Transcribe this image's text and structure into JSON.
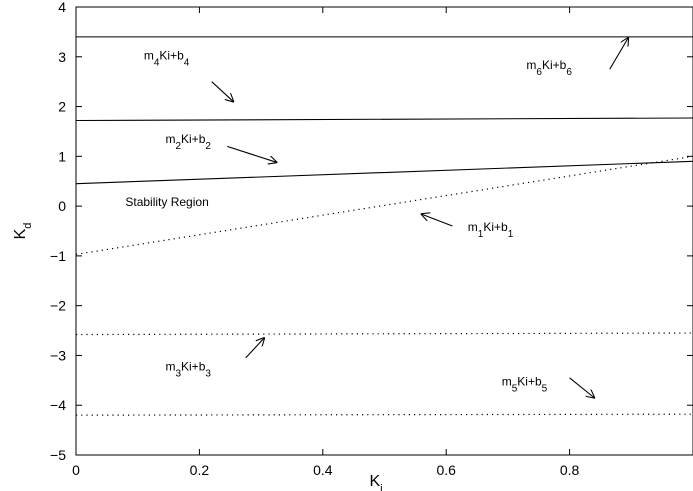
{
  "chart_data": {
    "type": "line",
    "title": "",
    "xlabel": {
      "main": "K",
      "sub": "i"
    },
    "ylabel": {
      "main": "K",
      "sub": "d"
    },
    "xlim": [
      0,
      1
    ],
    "ylim": [
      -5,
      4
    ],
    "xticks": [
      0,
      0.2,
      0.4,
      0.6,
      0.8
    ],
    "xtick_labels": [
      "0",
      "0.2",
      "0.4",
      "0.6",
      "0.8"
    ],
    "yticks": [
      -5,
      -4,
      -3,
      -2,
      -1,
      0,
      1,
      2,
      3,
      4
    ],
    "ytick_labels": [
      "−5",
      "−4",
      "−3",
      "−2",
      "−1",
      "0",
      "1",
      "2",
      "3",
      "4"
    ],
    "grid": false,
    "series": [
      {
        "id": "b6",
        "style": "solid",
        "color": "#000000",
        "x": [
          0,
          1
        ],
        "y": [
          3.4,
          3.4
        ]
      },
      {
        "id": "b4",
        "style": "solid",
        "color": "#000000",
        "x": [
          0,
          1
        ],
        "y": [
          1.72,
          1.77
        ]
      },
      {
        "id": "b2",
        "style": "solid",
        "color": "#000000",
        "x": [
          0,
          1
        ],
        "y": [
          0.45,
          0.9
        ]
      },
      {
        "id": "b1",
        "style": "dotted",
        "color": "#000000",
        "x": [
          0,
          1
        ],
        "y": [
          -0.97,
          1.0
        ]
      },
      {
        "id": "b3",
        "style": "dotted",
        "color": "#000000",
        "x": [
          0,
          1
        ],
        "y": [
          -2.58,
          -2.55
        ]
      },
      {
        "id": "b5",
        "style": "dotted",
        "color": "#000000",
        "x": [
          0,
          1
        ],
        "y": [
          -4.2,
          -4.18
        ]
      }
    ],
    "annotations": [
      {
        "id": "m4",
        "label": {
          "m": "m",
          "ms": "4",
          "mid": "Ki+b",
          "bs": "4"
        },
        "x": 0.11,
        "y": 2.95,
        "arrow": {
          "from": [
            0.22,
            2.5
          ],
          "to": [
            0.255,
            2.1
          ]
        }
      },
      {
        "id": "m6",
        "label": {
          "m": "m",
          "ms": "6",
          "mid": "Ki+b",
          "bs": "6"
        },
        "x": 0.73,
        "y": 2.75,
        "arrow": {
          "from": [
            0.865,
            2.75
          ],
          "to": [
            0.895,
            3.38
          ]
        }
      },
      {
        "id": "m2",
        "label": {
          "m": "m",
          "ms": "2",
          "mid": "Ki+b",
          "bs": "2"
        },
        "x": 0.145,
        "y": 1.27,
        "arrow": {
          "from": [
            0.245,
            1.2
          ],
          "to": [
            0.325,
            0.88
          ]
        }
      },
      {
        "id": "m1",
        "label": {
          "m": "m",
          "ms": "1",
          "mid": "Ki+b",
          "bs": "1"
        },
        "x": 0.635,
        "y": -0.5,
        "arrow": {
          "from": [
            0.61,
            -0.4
          ],
          "to": [
            0.56,
            -0.16
          ]
        }
      },
      {
        "id": "m3",
        "label": {
          "m": "m",
          "ms": "3",
          "mid": "Ki+b",
          "bs": "3"
        },
        "x": 0.145,
        "y": -3.3,
        "arrow": {
          "from": [
            0.275,
            -3.05
          ],
          "to": [
            0.305,
            -2.65
          ]
        }
      },
      {
        "id": "m5",
        "label": {
          "m": "m",
          "ms": "5",
          "mid": "Ki+b",
          "bs": "5"
        },
        "x": 0.69,
        "y": -3.6,
        "arrow": {
          "from": [
            0.8,
            -3.45
          ],
          "to": [
            0.84,
            -3.85
          ]
        }
      }
    ],
    "region_label": {
      "text": "Stability Region",
      "x": 0.08,
      "y": 0.0
    }
  }
}
